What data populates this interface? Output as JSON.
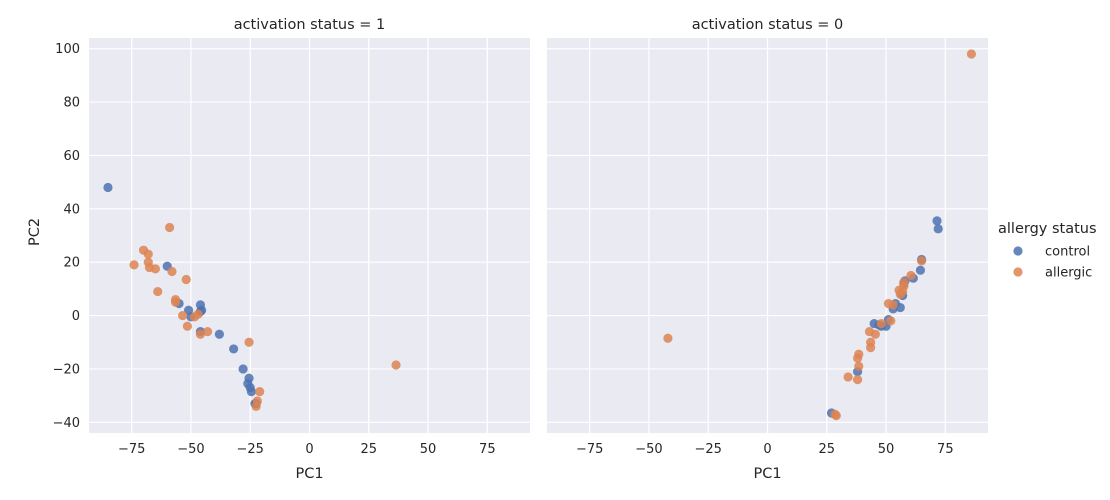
{
  "chart_data": {
    "type": "scatter",
    "xlabel": "PC1",
    "ylabel": "PC2",
    "xlim": [
      -93,
      93
    ],
    "ylim": [
      -44,
      104
    ],
    "xticks": [
      -75,
      -50,
      -25,
      0,
      25,
      50,
      75
    ],
    "yticks": [
      -40,
      -20,
      0,
      20,
      40,
      60,
      80,
      100
    ],
    "legend": {
      "title": "allergy status",
      "placement": "right",
      "entries": [
        {
          "name": "control",
          "color": "#4c72b0"
        },
        {
          "name": "allergic",
          "color": "#dd8452"
        }
      ]
    },
    "panels": [
      {
        "title": "activation status = 1",
        "series": [
          {
            "name": "control",
            "color": "#4c72b0",
            "points": [
              [
                -85,
                48
              ],
              [
                -60,
                18.5
              ],
              [
                -55,
                4.5
              ],
              [
                -51,
                2
              ],
              [
                -50,
                -0.5
              ],
              [
                -46,
                4
              ],
              [
                -46,
                1.5
              ],
              [
                -45.5,
                2
              ],
              [
                -46,
                -6
              ],
              [
                -38,
                -7
              ],
              [
                -32,
                -12.5
              ],
              [
                -28,
                -20
              ],
              [
                -26,
                -25.5
              ],
              [
                -25.5,
                -23.5
              ],
              [
                -25,
                -27
              ],
              [
                -24.5,
                -28.5
              ],
              [
                -22.5,
                -33
              ],
              [
                -23,
                -33
              ]
            ]
          },
          {
            "name": "allergic",
            "color": "#dd8452",
            "points": [
              [
                -74,
                19
              ],
              [
                -70,
                24.5
              ],
              [
                -68,
                23
              ],
              [
                -68,
                20
              ],
              [
                -67.5,
                18
              ],
              [
                -65,
                17.5
              ],
              [
                -64,
                9
              ],
              [
                -59,
                33
              ],
              [
                -58,
                16.5
              ],
              [
                -56.5,
                6
              ],
              [
                -56.5,
                5
              ],
              [
                -53.5,
                0
              ],
              [
                -52,
                13.5
              ],
              [
                -51.5,
                -4
              ],
              [
                -48.5,
                -0.5
              ],
              [
                -47,
                0.5
              ],
              [
                -46,
                -7
              ],
              [
                -43,
                -6
              ],
              [
                -25.5,
                -10
              ],
              [
                -21,
                -28.5
              ],
              [
                -22,
                -32
              ],
              [
                -22.5,
                -34
              ],
              [
                36.5,
                -18.5
              ]
            ]
          }
        ]
      },
      {
        "title": "activation status = 0",
        "series": [
          {
            "name": "control",
            "color": "#4c72b0",
            "points": [
              [
                27,
                -36.5
              ],
              [
                38,
                -21
              ],
              [
                45,
                -3
              ],
              [
                47,
                -3.5
              ],
              [
                48,
                -4
              ],
              [
                50,
                -4
              ],
              [
                51,
                -1.5
              ],
              [
                53,
                2.5
              ],
              [
                54,
                4.5
              ],
              [
                56,
                3
              ],
              [
                57,
                7.5
              ],
              [
                57.5,
                12
              ],
              [
                58,
                13
              ],
              [
                61.5,
                14
              ],
              [
                64.5,
                17
              ],
              [
                65,
                21
              ],
              [
                71.5,
                35.5
              ],
              [
                72,
                32.5
              ]
            ]
          },
          {
            "name": "allergic",
            "color": "#dd8452",
            "points": [
              [
                -42,
                -8.5
              ],
              [
                28.5,
                -37
              ],
              [
                29,
                -37.5
              ],
              [
                34,
                -23
              ],
              [
                38,
                -24
              ],
              [
                38,
                -16
              ],
              [
                38.5,
                -14.5
              ],
              [
                38.5,
                -19
              ],
              [
                43,
                -6
              ],
              [
                43.5,
                -10
              ],
              [
                43.5,
                -12
              ],
              [
                45.5,
                -7
              ],
              [
                48,
                -3
              ],
              [
                51,
                4.5
              ],
              [
                52,
                -2
              ],
              [
                53,
                4
              ],
              [
                55.5,
                9.5
              ],
              [
                56,
                8
              ],
              [
                57,
                9
              ],
              [
                57.5,
                11
              ],
              [
                57.5,
                12.5
              ],
              [
                60.5,
                15
              ],
              [
                65,
                20.5
              ],
              [
                86,
                98
              ]
            ]
          }
        ]
      }
    ]
  }
}
